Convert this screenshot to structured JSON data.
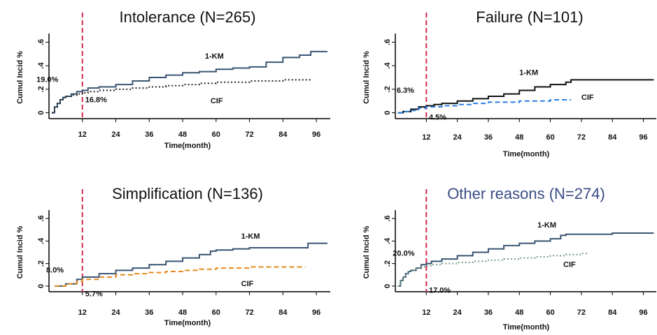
{
  "chart_data": [
    {
      "type": "line",
      "title": "Intolerance (N=265)",
      "title_color": "#111111",
      "xlabel": "Time(month)",
      "ylabel": "Cumul Incid %",
      "xlim": [
        0,
        101
      ],
      "ylim": [
        -0.05,
        0.65
      ],
      "xticks": [
        12,
        24,
        36,
        48,
        60,
        72,
        84,
        96
      ],
      "yticks": [
        0,
        0.2,
        0.4,
        0.6
      ],
      "ytick_labels": [
        "0",
        ".2",
        ".4",
        ".6"
      ],
      "vline": {
        "x": 12,
        "color": "#d62a4e"
      },
      "series": [
        {
          "name": "1-KM",
          "color": "#3a5573",
          "dash": "solid",
          "x": [
            1,
            2,
            3,
            4,
            5,
            6,
            8,
            10,
            12,
            14,
            18,
            24,
            30,
            36,
            42,
            48,
            54,
            60,
            66,
            72,
            78,
            84,
            90,
            94,
            100
          ],
          "y": [
            0.0,
            0.05,
            0.08,
            0.11,
            0.13,
            0.14,
            0.16,
            0.18,
            0.19,
            0.21,
            0.22,
            0.24,
            0.27,
            0.3,
            0.32,
            0.34,
            0.35,
            0.37,
            0.38,
            0.39,
            0.43,
            0.47,
            0.49,
            0.52,
            0.52
          ]
        },
        {
          "name": "CIF",
          "color": "#222222",
          "dash": "dotted",
          "x": [
            1,
            2,
            3,
            4,
            5,
            6,
            8,
            10,
            12,
            14,
            18,
            24,
            30,
            36,
            42,
            48,
            54,
            60,
            66,
            72,
            78,
            84,
            90,
            94
          ],
          "y": [
            0.0,
            0.05,
            0.08,
            0.11,
            0.13,
            0.14,
            0.15,
            0.16,
            0.17,
            0.18,
            0.19,
            0.2,
            0.21,
            0.22,
            0.23,
            0.24,
            0.25,
            0.26,
            0.26,
            0.27,
            0.27,
            0.28,
            0.28,
            0.28
          ]
        }
      ],
      "labels": [
        {
          "text": "1-KM",
          "x": 56,
          "y": 0.46
        },
        {
          "text": "CIF",
          "x": 58,
          "y": 0.08
        },
        {
          "text": "19.0%",
          "x": -4.5,
          "y": 0.26
        },
        {
          "text": "16.8%",
          "x": 13,
          "y": 0.09
        }
      ]
    },
    {
      "type": "line",
      "title": "Failure (N=101)",
      "title_color": "#111111",
      "xlabel": "Time(month)",
      "ylabel": "Cumul Incid %",
      "xlim": [
        0,
        101
      ],
      "ylim": [
        -0.05,
        0.65
      ],
      "xticks": [
        12,
        24,
        36,
        48,
        60,
        72,
        84,
        96
      ],
      "yticks": [
        0,
        0.2,
        0.4,
        0.6
      ],
      "ytick_labels": [
        "0",
        ".2",
        ".4",
        ".6"
      ],
      "vline": {
        "x": 12,
        "color": "#d62a4e"
      },
      "series": [
        {
          "name": "1-KM",
          "color": "#111111",
          "dash": "solid",
          "x": [
            1,
            3,
            6,
            9,
            12,
            15,
            18,
            24,
            30,
            36,
            42,
            48,
            54,
            60,
            66,
            68,
            72,
            84,
            96,
            100
          ],
          "y": [
            0.0,
            0.01,
            0.03,
            0.05,
            0.06,
            0.07,
            0.08,
            0.1,
            0.12,
            0.14,
            0.16,
            0.19,
            0.22,
            0.24,
            0.26,
            0.28,
            0.28,
            0.28,
            0.28,
            0.28
          ]
        },
        {
          "name": "CIF",
          "color": "#2a7de0",
          "dash": "dashed",
          "x": [
            1,
            3,
            6,
            9,
            12,
            18,
            24,
            30,
            36,
            42,
            48,
            54,
            60,
            66,
            68
          ],
          "y": [
            0.0,
            0.01,
            0.02,
            0.04,
            0.05,
            0.06,
            0.07,
            0.08,
            0.09,
            0.09,
            0.1,
            0.1,
            0.11,
            0.11,
            0.11
          ]
        }
      ],
      "labels": [
        {
          "text": "1-KM",
          "x": 48,
          "y": 0.32
        },
        {
          "text": "CIF",
          "x": 72,
          "y": 0.11
        },
        {
          "text": "6.3%",
          "x": 0.5,
          "y": 0.17
        },
        {
          "text": "4.5%",
          "x": 13,
          "y": -0.06
        }
      ]
    },
    {
      "type": "line",
      "title": "Simplification (N=136)",
      "title_color": "#111111",
      "xlabel": "Time(month)",
      "ylabel": "Cumul Incid %",
      "xlim": [
        0,
        101
      ],
      "ylim": [
        -0.05,
        0.65
      ],
      "xticks": [
        12,
        24,
        36,
        48,
        60,
        72,
        84,
        96
      ],
      "yticks": [
        0,
        0.2,
        0.4,
        0.6
      ],
      "ytick_labels": [
        "0",
        ".2",
        ".4",
        ".6"
      ],
      "vline": {
        "x": 12,
        "color": "#d62a4e"
      },
      "series": [
        {
          "name": "1-KM",
          "color": "#3a5573",
          "dash": "solid",
          "x": [
            2,
            6,
            10,
            12,
            18,
            24,
            30,
            36,
            42,
            48,
            54,
            58,
            60,
            66,
            72,
            84,
            92,
            93,
            100
          ],
          "y": [
            0.0,
            0.02,
            0.06,
            0.08,
            0.11,
            0.14,
            0.16,
            0.19,
            0.22,
            0.25,
            0.28,
            0.31,
            0.32,
            0.33,
            0.34,
            0.34,
            0.34,
            0.38,
            0.38
          ]
        },
        {
          "name": "CIF",
          "color": "#e68a1c",
          "dash": "dashed",
          "x": [
            2,
            6,
            10,
            12,
            18,
            24,
            30,
            36,
            42,
            48,
            54,
            60,
            66,
            72,
            84,
            92
          ],
          "y": [
            0.0,
            0.02,
            0.04,
            0.06,
            0.08,
            0.1,
            0.11,
            0.12,
            0.13,
            0.14,
            0.15,
            0.16,
            0.16,
            0.17,
            0.17,
            0.17
          ]
        }
      ],
      "labels": [
        {
          "text": "1-KM",
          "x": 69,
          "y": 0.42
        },
        {
          "text": "CIF",
          "x": 69,
          "y": 0.0
        },
        {
          "text": "8.0%",
          "x": -1,
          "y": 0.12
        },
        {
          "text": "5.7%",
          "x": 13,
          "y": -0.09
        }
      ]
    },
    {
      "type": "line",
      "title": "Other reasons (N=274)",
      "title_color": "#3a4d86",
      "xlabel": "Time(month)",
      "ylabel": "Cumul Incid %",
      "xlim": [
        0,
        101
      ],
      "ylim": [
        -0.05,
        0.65
      ],
      "xticks": [
        12,
        24,
        36,
        48,
        60,
        72,
        84,
        96
      ],
      "yticks": [
        0,
        0.2,
        0.4,
        0.6
      ],
      "ytick_labels": [
        "0",
        ".2",
        ".4",
        ".6"
      ],
      "vline": {
        "x": 12,
        "color": "#d62a4e"
      },
      "series": [
        {
          "name": "1-KM",
          "color": "#3a5573",
          "dash": "solid",
          "x": [
            1,
            2,
            3,
            4,
            5,
            6,
            8,
            10,
            12,
            14,
            18,
            24,
            30,
            36,
            42,
            48,
            54,
            60,
            64,
            66,
            72,
            84,
            96,
            100
          ],
          "y": [
            0.0,
            0.05,
            0.08,
            0.11,
            0.13,
            0.14,
            0.16,
            0.19,
            0.2,
            0.22,
            0.24,
            0.27,
            0.3,
            0.33,
            0.36,
            0.38,
            0.4,
            0.42,
            0.45,
            0.46,
            0.46,
            0.47,
            0.47,
            0.47
          ]
        },
        {
          "name": "CIF",
          "color": "#7a9a8a",
          "dash": "dotted",
          "x": [
            1,
            2,
            3,
            4,
            5,
            6,
            8,
            10,
            12,
            14,
            18,
            24,
            30,
            36,
            42,
            48,
            54,
            60,
            66,
            72,
            74
          ],
          "y": [
            0.0,
            0.05,
            0.08,
            0.11,
            0.13,
            0.14,
            0.16,
            0.17,
            0.18,
            0.19,
            0.2,
            0.21,
            0.22,
            0.23,
            0.24,
            0.25,
            0.26,
            0.27,
            0.28,
            0.29,
            0.3
          ]
        }
      ],
      "labels": [
        {
          "text": "1-KM",
          "x": 55,
          "y": 0.52
        },
        {
          "text": "CIF",
          "x": 65,
          "y": 0.17
        },
        {
          "text": "20.0%",
          "x": -1,
          "y": 0.27
        },
        {
          "text": "17.0%",
          "x": 13,
          "y": -0.06
        }
      ]
    }
  ]
}
